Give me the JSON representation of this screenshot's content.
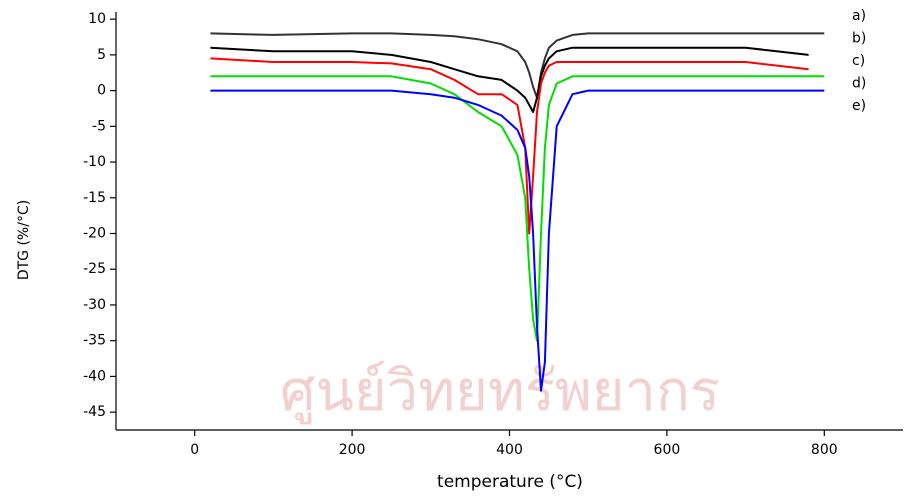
{
  "chart_data": {
    "type": "line",
    "watermark": "ศูนย์วิทยทรัพยากร",
    "x_label": "temperature (°C)",
    "y_label": "DTG (%/°C)",
    "x": [
      20,
      100,
      200,
      250,
      300,
      330,
      360,
      390,
      410,
      420,
      425,
      430,
      435,
      440,
      445,
      450,
      460,
      480,
      500,
      600,
      700,
      780,
      800
    ],
    "series": [
      {
        "name": "a)",
        "color": "#333333",
        "values": [
          8,
          7.8,
          8,
          8,
          7.8,
          7.6,
          7.2,
          6.5,
          5.5,
          4,
          2.5,
          0.5,
          -1,
          2.5,
          4.5,
          6,
          7,
          7.8,
          8,
          8,
          8,
          8,
          8
        ]
      },
      {
        "name": "b)",
        "color": "#000000",
        "values": [
          6,
          5.5,
          5.5,
          5,
          4,
          3,
          2,
          1.5,
          0,
          -1,
          -2,
          -3,
          -1,
          2,
          3.5,
          4.5,
          5.5,
          6,
          6,
          6,
          6,
          5,
          null
        ]
      },
      {
        "name": "c)",
        "color": "#ff0000",
        "values": [
          4.5,
          4,
          4,
          3.8,
          3,
          1.5,
          -0.5,
          -0.5,
          -2,
          -8,
          -20,
          -12,
          -3,
          1,
          2.5,
          3.5,
          4,
          4,
          4,
          4,
          4,
          3,
          null
        ]
      },
      {
        "name": "d)",
        "color": "#00dd00",
        "values": [
          2,
          2,
          2,
          2,
          1,
          -0.5,
          -3,
          -5,
          -9,
          -15,
          -25,
          -32,
          -35,
          -20,
          -8,
          -2,
          1,
          2,
          2,
          2,
          2,
          2,
          2
        ]
      },
      {
        "name": "e)",
        "color": "#0000ff",
        "values": [
          0,
          0,
          0,
          0,
          -0.5,
          -1,
          -2,
          -3.5,
          -5.5,
          -8,
          -12,
          -20,
          -33,
          -42,
          -38,
          -20,
          -5,
          -0.5,
          0,
          0,
          0,
          0,
          0
        ]
      }
    ],
    "xlim": [
      -100,
      900
    ],
    "xticks": [
      0,
      200,
      400,
      600,
      800
    ],
    "ylim": [
      -47.5,
      11
    ],
    "yticks": [
      10,
      5,
      0,
      -5,
      -10,
      -15,
      -20,
      -25,
      -30,
      -35,
      -40,
      -45
    ],
    "grid": false
  }
}
